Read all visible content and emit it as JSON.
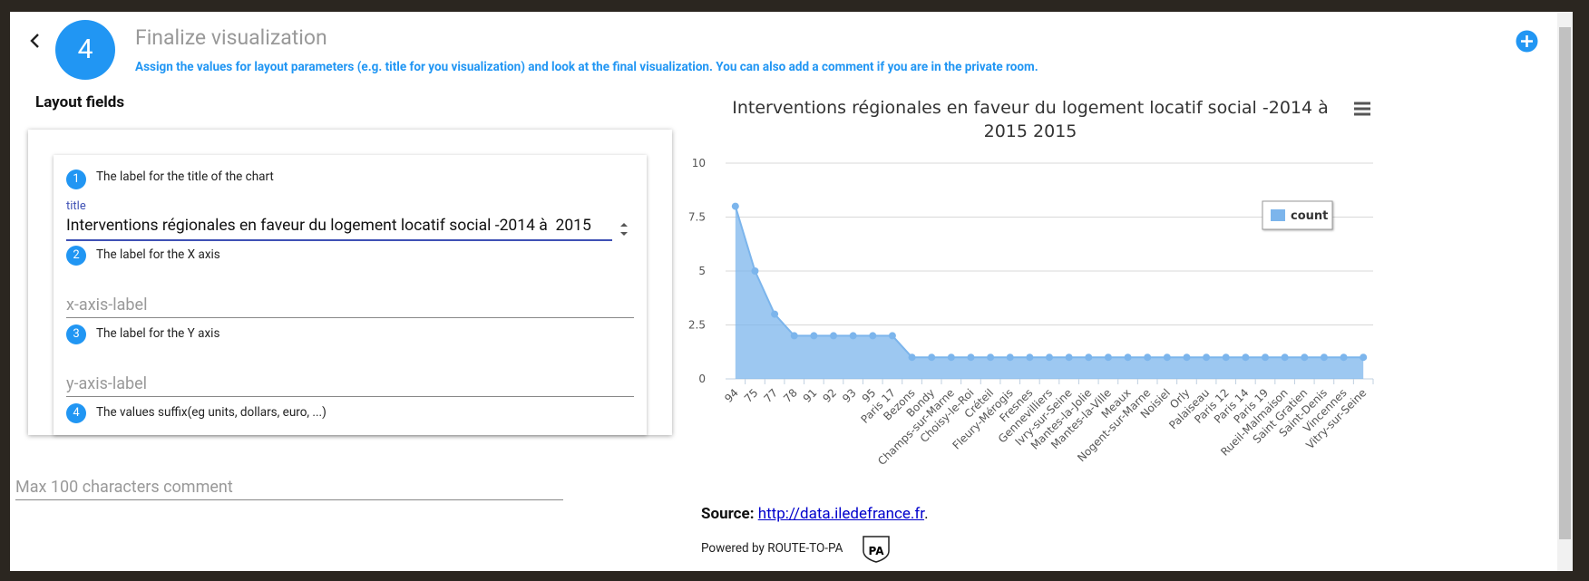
{
  "header": {
    "step": "4",
    "title": "Finalize visualization",
    "subtitle": "Assign the values for layout parameters (e.g. title for you visualization) and look at the final visualization. You can also add a comment if you are in the private room."
  },
  "layout": {
    "heading": "Layout fields",
    "fields": [
      {
        "number": "1",
        "label": "The label for the title of the chart",
        "field_label": "title",
        "value": "Interventions régionales en faveur du logement locatif social -2014 à  2015"
      },
      {
        "number": "2",
        "label": "The label for the X axis",
        "placeholder": "x-axis-label"
      },
      {
        "number": "3",
        "label": "The label for the Y axis",
        "placeholder": "y-axis-label"
      },
      {
        "number": "4",
        "label": "The values suffix(eg units, dollars, euro, ...)"
      }
    ]
  },
  "comment_placeholder": "Max 100 characters comment",
  "chart_data": {
    "type": "area",
    "title": "Interventions régionales en faveur du logement locatif social -2014 à 2015 2015",
    "categories": [
      "94",
      "75",
      "77",
      "78",
      "91",
      "92",
      "93",
      "95",
      "Paris 17",
      "Bezons",
      "Bondy",
      "Champs-sur-Marne",
      "Choisy-le-Roi",
      "Créteil",
      "Fleury-Mérogis",
      "Fresnes",
      "Gennevilliers",
      "Ivry-sur-Seine",
      "Mantes-la-Jolie",
      "Mantes-la-Ville",
      "Meaux",
      "Nogent-sur-Marne",
      "Noisiel",
      "Orly",
      "Palaiseau",
      "Paris 12",
      "Paris 14",
      "Paris 19",
      "Rueil-Malmaison",
      "Saint Gratien",
      "Saint-Denis",
      "Vincennes",
      "Vitry-sur-Seine"
    ],
    "series": [
      {
        "name": "count",
        "color": "#7cb5ec",
        "values": [
          8,
          5,
          3,
          2,
          2,
          2,
          2,
          2,
          2,
          1,
          1,
          1,
          1,
          1,
          1,
          1,
          1,
          1,
          1,
          1,
          1,
          1,
          1,
          1,
          1,
          1,
          1,
          1,
          1,
          1,
          1,
          1,
          1
        ]
      }
    ],
    "ylim": [
      0,
      10
    ],
    "yticks": [
      0,
      2.5,
      5,
      7.5,
      10
    ],
    "grid": true,
    "legend": "upper right"
  },
  "source": {
    "label": "Source:",
    "link": "http://data.iledefrance.fr",
    "end": "."
  },
  "powered_by": "Powered by ROUTE-TO-PA",
  "logo": "PA"
}
